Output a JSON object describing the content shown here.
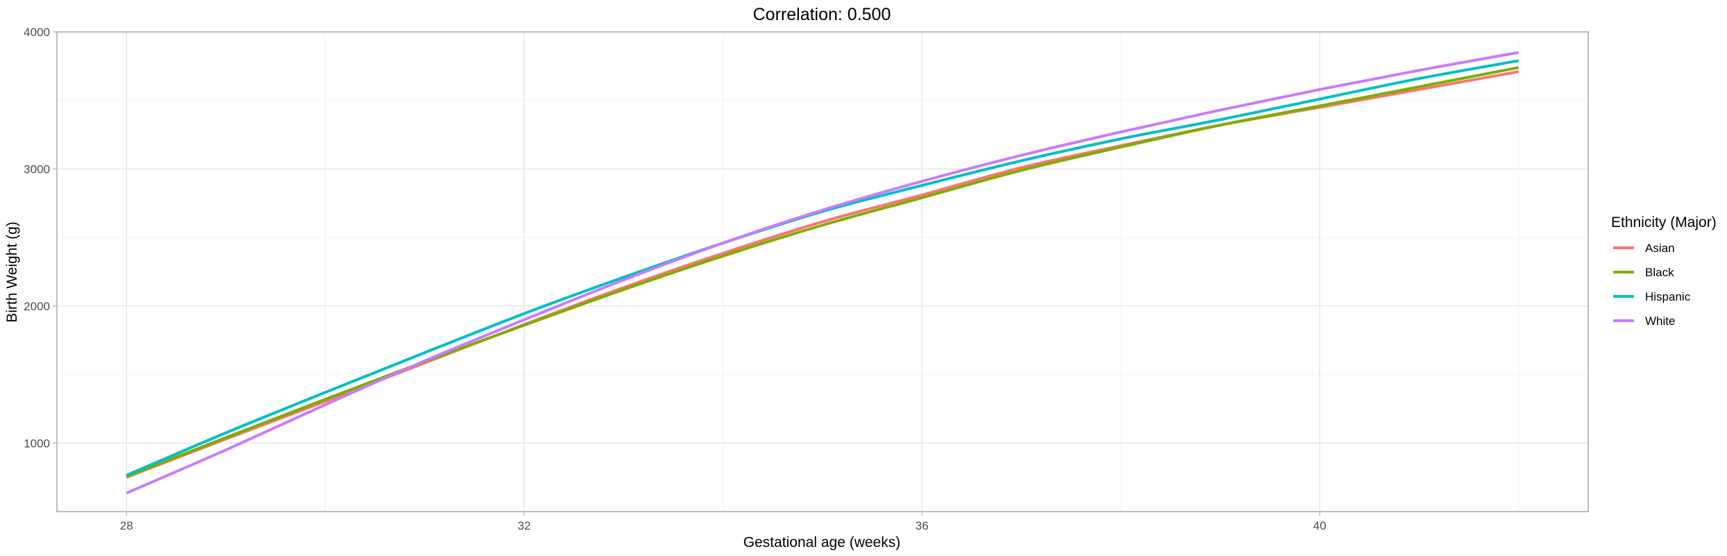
{
  "chart_data": {
    "type": "line",
    "title": "Correlation: 0.500",
    "xlabel": "Gestational age (weeks)",
    "ylabel": "Birth Weight (g)",
    "xlim": [
      27.3,
      42.7
    ],
    "ylim": [
      500,
      4000
    ],
    "x_ticks": [
      28,
      32,
      36,
      40
    ],
    "y_ticks": [
      1000,
      2000,
      3000,
      4000
    ],
    "grid": true,
    "legend": {
      "title": "Ethnicity (Major)",
      "position": "right"
    },
    "x": [
      28,
      29,
      30,
      31,
      32,
      33,
      34,
      35,
      36,
      37,
      38,
      39,
      40,
      41,
      42
    ],
    "series": [
      {
        "name": "Asian",
        "color": "#F8766D",
        "values": [
          750,
          1030,
          1305,
          1585,
          1865,
          2135,
          2385,
          2615,
          2810,
          3010,
          3170,
          3320,
          3450,
          3580,
          3710
        ]
      },
      {
        "name": "Black",
        "color": "#7CAE00",
        "values": [
          755,
          1040,
          1320,
          1595,
          1860,
          2120,
          2365,
          2590,
          2790,
          2990,
          3160,
          3320,
          3460,
          3600,
          3740
        ]
      },
      {
        "name": "Hispanic",
        "color": "#00BFC4",
        "values": [
          765,
          1075,
          1370,
          1660,
          1945,
          2210,
          2460,
          2690,
          2880,
          3060,
          3220,
          3360,
          3510,
          3660,
          3790
        ]
      },
      {
        "name": "White",
        "color": "#C77CFF",
        "values": [
          635,
          950,
          1280,
          1600,
          1900,
          2190,
          2460,
          2700,
          2910,
          3100,
          3270,
          3430,
          3580,
          3720,
          3850
        ]
      }
    ]
  }
}
